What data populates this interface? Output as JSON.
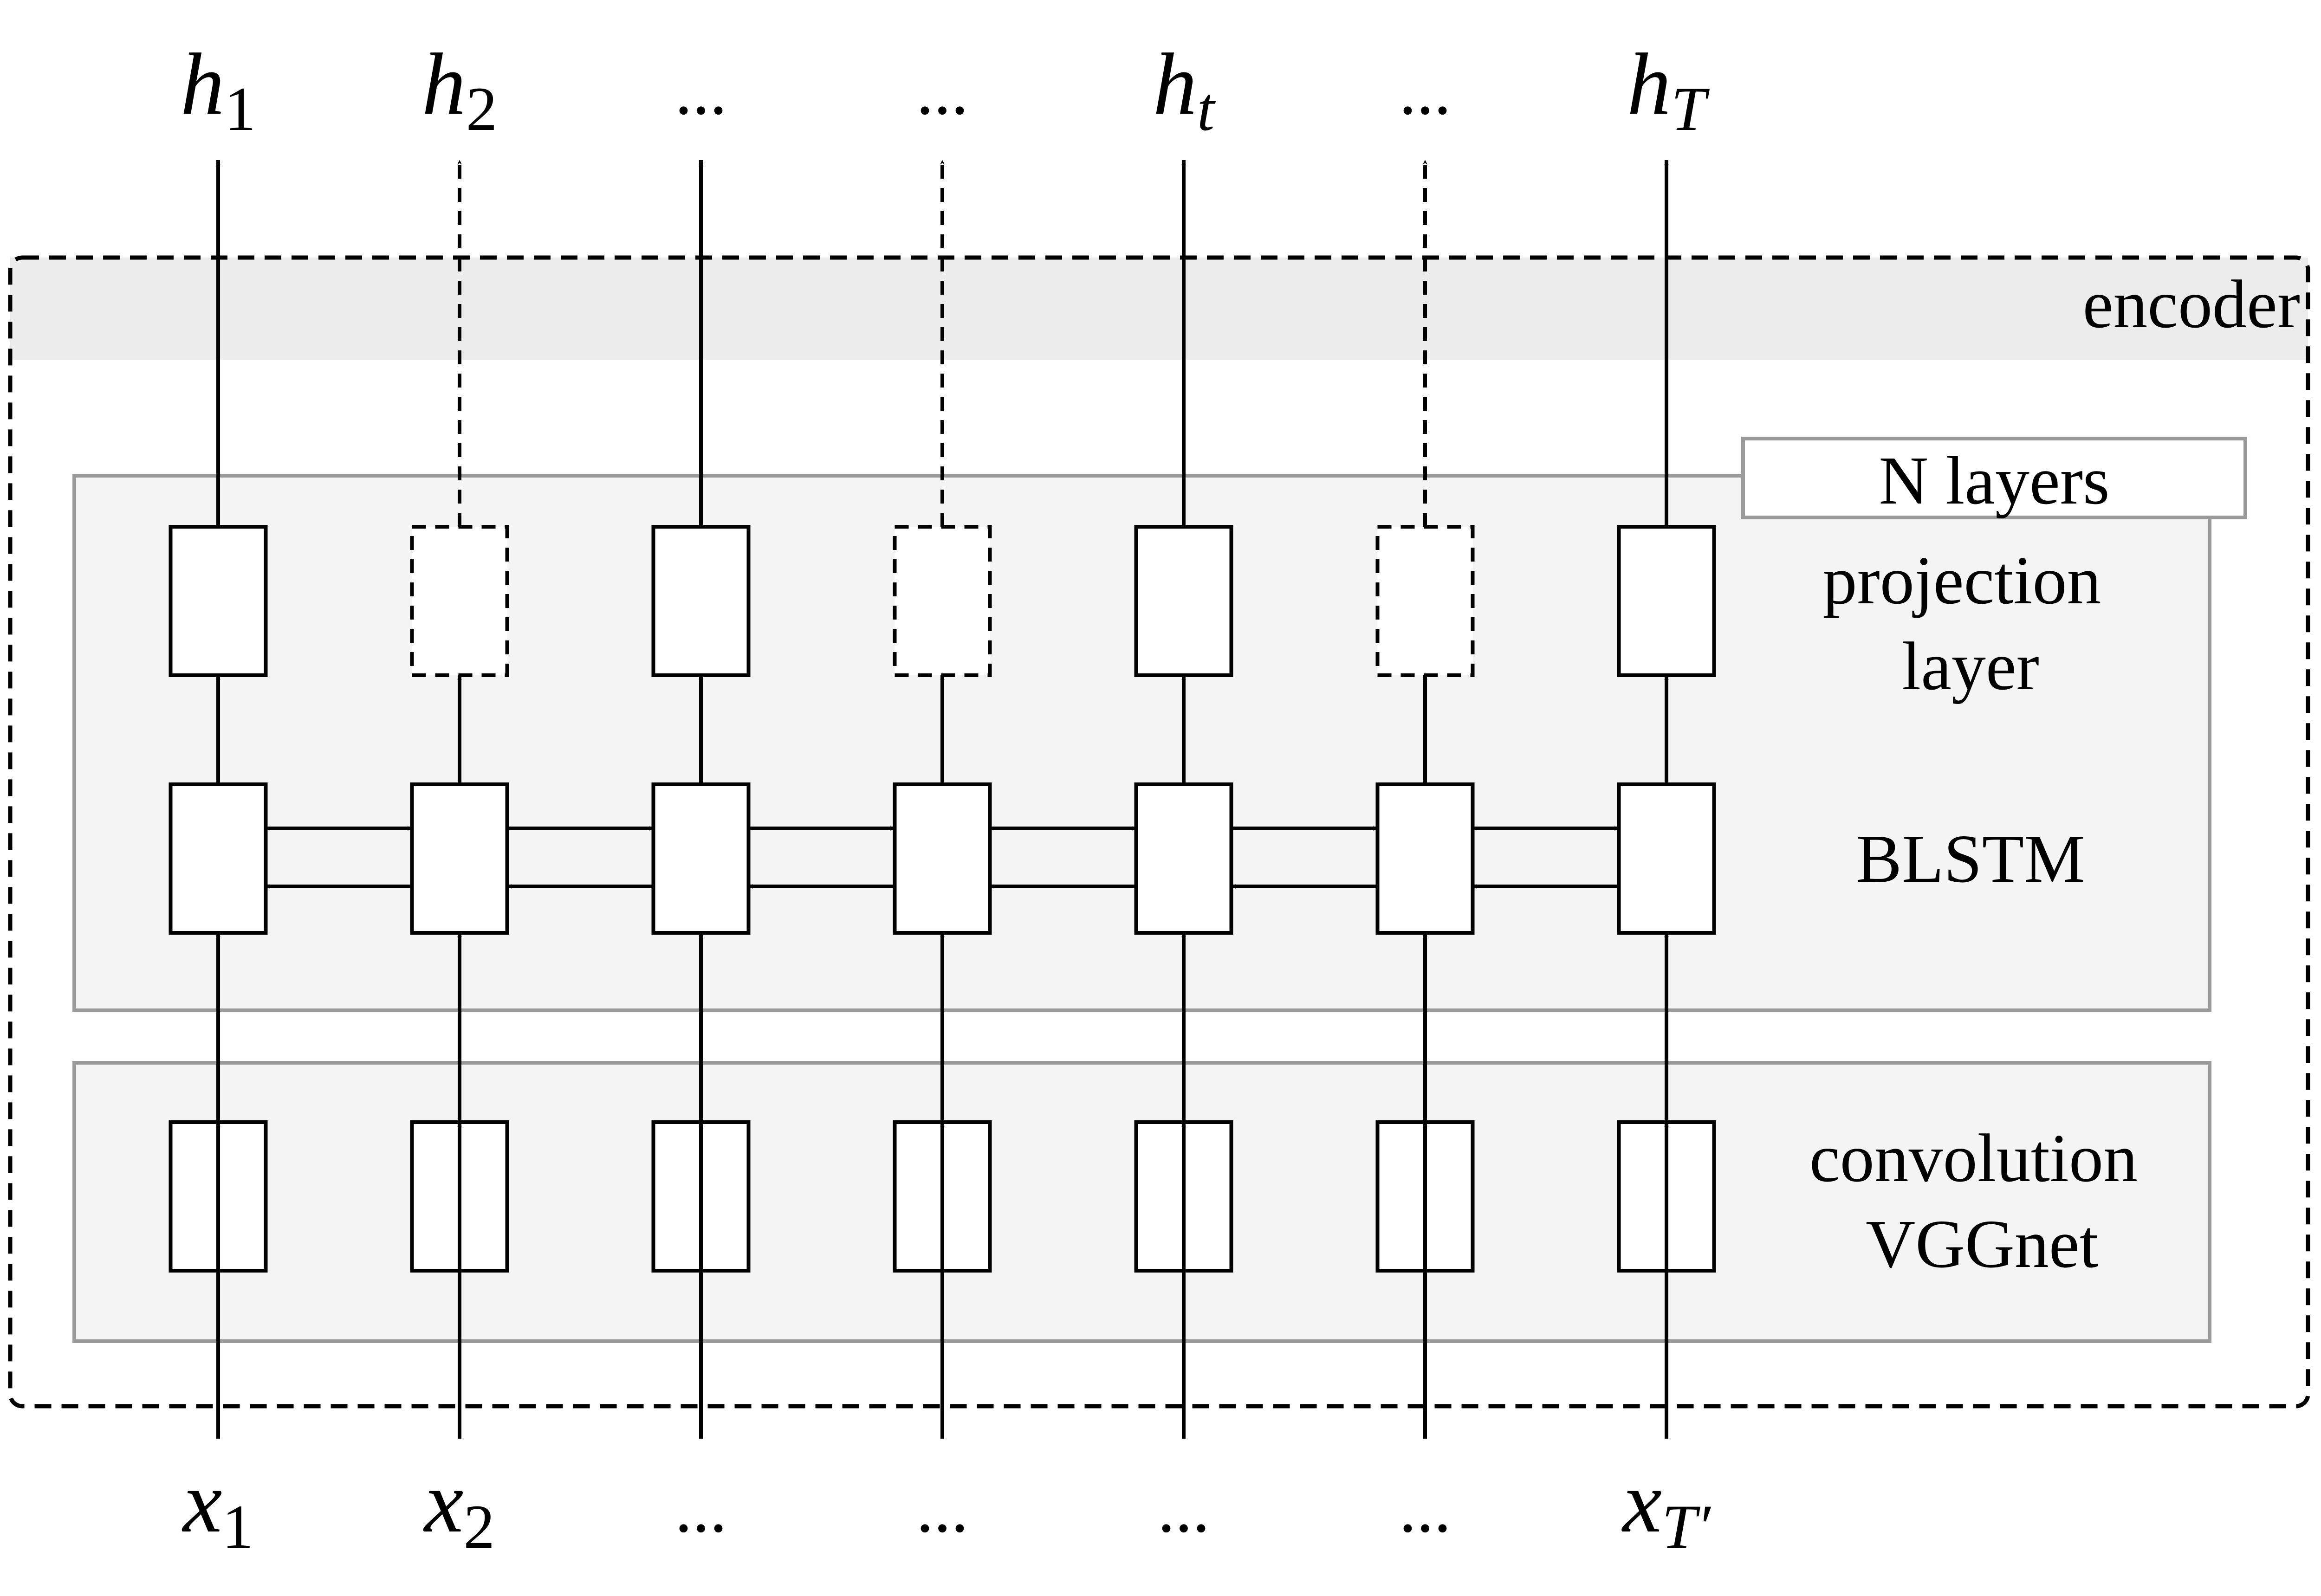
{
  "encoder_label": "encoder",
  "n_layers_label": "N layers",
  "projection_label": [
    "projection",
    "layer"
  ],
  "blstm_label": "BLSTM",
  "conv_label": [
    "convolution",
    "VGGnet"
  ],
  "outputs": [
    {
      "base": "h",
      "sub": "1",
      "dashed": false
    },
    {
      "base": "h",
      "sub": "2",
      "dashed": true
    },
    {
      "base": "...",
      "sub": "",
      "dashed": false
    },
    {
      "base": "...",
      "sub": "",
      "dashed": true
    },
    {
      "base": "h",
      "sub": "t",
      "dashed": false
    },
    {
      "base": "...",
      "sub": "",
      "dashed": true
    },
    {
      "base": "h",
      "sub": "T",
      "dashed": false
    }
  ],
  "inputs": [
    {
      "base": "x",
      "sub": "1"
    },
    {
      "base": "x",
      "sub": "2"
    },
    {
      "base": "...",
      "sub": ""
    },
    {
      "base": "...",
      "sub": ""
    },
    {
      "base": "...",
      "sub": ""
    },
    {
      "base": "...",
      "sub": ""
    },
    {
      "base": "x",
      "sub": "T′"
    }
  ],
  "colors": {
    "panel_fill": "#f4f4f4",
    "panel_stroke": "#9a9a9a",
    "encoder_band": "#ececec",
    "box_fill": "#ffffff",
    "line": "#000000"
  }
}
